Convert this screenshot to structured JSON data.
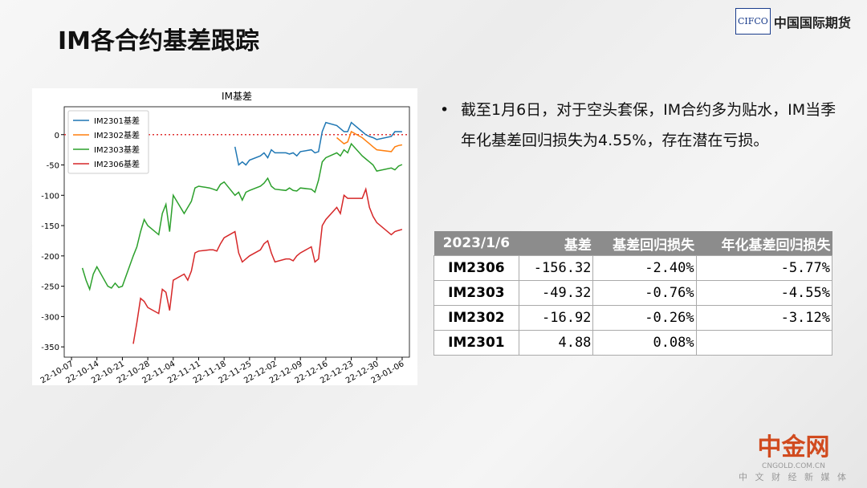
{
  "title": "IM各合约基差跟踪",
  "logo": {
    "mark": "CIFCO",
    "name": "中国国际期货"
  },
  "bullet": "截至1月6日，对于空头套保，IM合约多为贴水，IM当季年化基差回归损失为4.55%，存在潜在亏损。",
  "table": {
    "header": [
      "2023/1/6",
      "基差",
      "基差回归损失",
      "年化基差回归损失"
    ],
    "rows": [
      [
        "IM2306",
        "-156.32",
        "-2.40%",
        "-5.77%"
      ],
      [
        "IM2303",
        "-49.32",
        "-0.76%",
        "-4.55%"
      ],
      [
        "IM2302",
        "-16.92",
        "-0.26%",
        "-3.12%"
      ],
      [
        "IM2301",
        "4.88",
        "0.08%"
      ]
    ]
  },
  "watermark": {
    "name": "中金网",
    "site": "CNGOLD.COM.CN",
    "slogan": "中 文 财 经 新 媒 体"
  },
  "chart_data": {
    "type": "line",
    "title": "IM基差",
    "x": [
      "2022-10-10",
      "2022-10-11",
      "2022-10-12",
      "2022-10-13",
      "2022-10-14",
      "2022-10-17",
      "2022-10-18",
      "2022-10-19",
      "2022-10-20",
      "2022-10-21",
      "2022-10-24",
      "2022-10-25",
      "2022-10-26",
      "2022-10-27",
      "2022-10-28",
      "2022-10-31",
      "2022-11-01",
      "2022-11-02",
      "2022-11-03",
      "2022-11-04",
      "2022-11-07",
      "2022-11-08",
      "2022-11-09",
      "2022-11-10",
      "2022-11-11",
      "2022-11-14",
      "2022-11-15",
      "2022-11-16",
      "2022-11-17",
      "2022-11-18",
      "2022-11-21",
      "2022-11-22",
      "2022-11-23",
      "2022-11-24",
      "2022-11-25",
      "2022-11-28",
      "2022-11-29",
      "2022-11-30",
      "2022-12-01",
      "2022-12-02",
      "2022-12-05",
      "2022-12-06",
      "2022-12-07",
      "2022-12-08",
      "2022-12-09",
      "2022-12-12",
      "2022-12-13",
      "2022-12-14",
      "2022-12-15",
      "2022-12-16",
      "2022-12-19",
      "2022-12-20",
      "2022-12-21",
      "2022-12-22",
      "2022-12-23",
      "2022-12-26",
      "2022-12-27",
      "2022-12-28",
      "2022-12-29",
      "2022-12-30",
      "2023-01-03",
      "2023-01-04",
      "2023-01-05",
      "2023-01-06"
    ],
    "series": [
      {
        "name": "IM2301基差",
        "color": "#1f77b4",
        "values": [
          null,
          null,
          null,
          null,
          null,
          null,
          null,
          null,
          null,
          null,
          null,
          null,
          null,
          null,
          null,
          null,
          null,
          null,
          null,
          null,
          null,
          null,
          null,
          null,
          null,
          null,
          null,
          null,
          null,
          null,
          -20,
          -50,
          -45,
          -50,
          -42,
          -35,
          -30,
          -38,
          -25,
          -30,
          -30,
          -32,
          -30,
          -35,
          -28,
          -25,
          -30,
          -28,
          5,
          20,
          15,
          10,
          5,
          5,
          20,
          5,
          0,
          -3,
          -5,
          -8,
          -3,
          5,
          5,
          4.88
        ]
      },
      {
        "name": "IM2302基差",
        "color": "#ff7f0e",
        "values": [
          null,
          null,
          null,
          null,
          null,
          null,
          null,
          null,
          null,
          null,
          null,
          null,
          null,
          null,
          null,
          null,
          null,
          null,
          null,
          null,
          null,
          null,
          null,
          null,
          null,
          null,
          null,
          null,
          null,
          null,
          null,
          null,
          null,
          null,
          null,
          null,
          null,
          null,
          null,
          null,
          null,
          null,
          null,
          null,
          null,
          null,
          null,
          null,
          null,
          null,
          -5,
          -10,
          -15,
          -12,
          5,
          -5,
          -10,
          -15,
          -20,
          -25,
          -28,
          -20,
          -18,
          -16.92
        ]
      },
      {
        "name": "IM2303基差",
        "color": "#2ca02c",
        "values": [
          -220,
          -240,
          -255,
          -230,
          -218,
          -250,
          -253,
          -245,
          -252,
          -250,
          -200,
          -185,
          -160,
          -140,
          -150,
          -165,
          -130,
          -115,
          -160,
          -100,
          -130,
          -120,
          -110,
          -88,
          -85,
          -88,
          -90,
          -92,
          -82,
          -78,
          -100,
          -95,
          -108,
          -95,
          -92,
          -85,
          -80,
          -72,
          -85,
          -90,
          -92,
          -88,
          -92,
          -93,
          -88,
          -90,
          -95,
          -75,
          -45,
          -38,
          -30,
          -35,
          -25,
          -30,
          -15,
          -35,
          -40,
          -45,
          -50,
          -60,
          -55,
          -58,
          -52,
          -49.32
        ]
      },
      {
        "name": "IM2306基差",
        "color": "#d62728",
        "values": [
          null,
          null,
          null,
          null,
          null,
          null,
          null,
          null,
          null,
          null,
          -345,
          -310,
          -270,
          -275,
          -285,
          -295,
          -255,
          -260,
          -290,
          -240,
          -230,
          -240,
          -225,
          -195,
          -192,
          -190,
          -190,
          -192,
          -180,
          -170,
          -160,
          -195,
          -210,
          -205,
          -200,
          -190,
          -180,
          -175,
          -195,
          -210,
          -205,
          -205,
          -208,
          -200,
          -195,
          -185,
          -210,
          -205,
          -150,
          -140,
          -120,
          -130,
          -100,
          -105,
          -105,
          -105,
          -90,
          -120,
          -135,
          -145,
          -165,
          -160,
          -158,
          -156.32
        ]
      }
    ],
    "hline": {
      "value": 0,
      "color": "#e03030",
      "style": "dotted"
    },
    "xlim": [
      "2022-10-05",
      "2023-01-08"
    ],
    "xticks": [
      {
        "value": "2022-10-07",
        "label": "22-10-07"
      },
      {
        "value": "2022-10-14",
        "label": "22-10-14"
      },
      {
        "value": "2022-10-21",
        "label": "22-10-21"
      },
      {
        "value": "2022-10-28",
        "label": "22-10-28"
      },
      {
        "value": "2022-11-04",
        "label": "22-11-04"
      },
      {
        "value": "2022-11-11",
        "label": "22-11-11"
      },
      {
        "value": "2022-11-18",
        "label": "22-11-18"
      },
      {
        "value": "2022-11-25",
        "label": "22-11-25"
      },
      {
        "value": "2022-12-02",
        "label": "22-12-02"
      },
      {
        "value": "2022-12-09",
        "label": "22-12-09"
      },
      {
        "value": "2022-12-16",
        "label": "22-12-16"
      },
      {
        "value": "2022-12-23",
        "label": "22-12-23"
      },
      {
        "value": "2022-12-30",
        "label": "22-12-30"
      },
      {
        "value": "2023-01-06",
        "label": "23-01-06"
      }
    ],
    "ylim": [
      -367,
      46
    ],
    "yticks": [
      0,
      -50,
      -100,
      -150,
      -200,
      -250,
      -300,
      -350
    ],
    "legend": "upper left",
    "grid": false
  }
}
